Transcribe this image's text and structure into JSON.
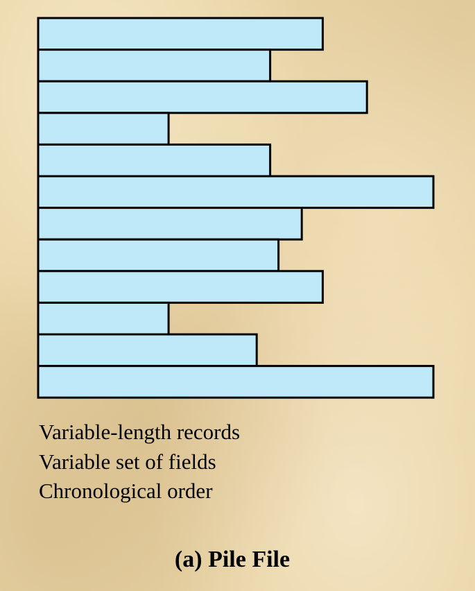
{
  "figure": {
    "title": "(a) Pile File",
    "notes": [
      "Variable-length records",
      "Variable set of fields",
      "Chronological order"
    ]
  },
  "records": {
    "count": 12,
    "relative_lengths": [
      0.72,
      0.587,
      0.832,
      0.33,
      0.587,
      1.0,
      0.667,
      0.608,
      0.72,
      0.33,
      0.553,
      1.0
    ],
    "fill_color": "#bfe8f8",
    "stroke_color": "#000000"
  }
}
